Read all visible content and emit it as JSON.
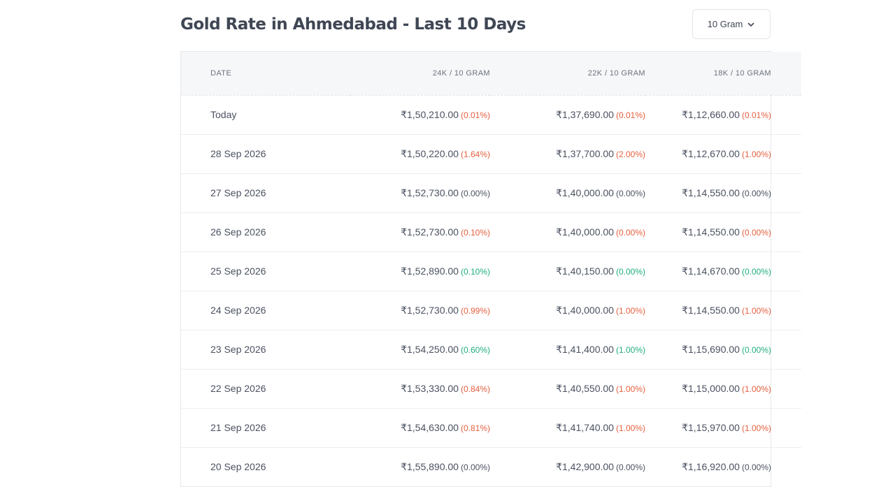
{
  "title": "Gold Rate in Ahmedabad - Last 10 Days",
  "unit_selector": {
    "value": "10 Gram",
    "icon": "chevron-down-icon"
  },
  "colors": {
    "increase": "#e5603f",
    "decrease": "#1fae7b",
    "unchanged": "#4a5160"
  },
  "table": {
    "headers": [
      "DATE",
      "24K / 10 GRAM",
      "22K / 10 GRAM",
      "18K / 10 GRAM"
    ],
    "rows": [
      {
        "date": "Today",
        "k24": {
          "price": "₹1,50,210.00",
          "change": "(0.01%)",
          "trend": "up"
        },
        "k22": {
          "price": "₹1,37,690.00",
          "change": "(0.01%)",
          "trend": "up"
        },
        "k18": {
          "price": "₹1,12,660.00",
          "change": "(0.01%)",
          "trend": "up"
        }
      },
      {
        "date": "28 Sep 2026",
        "k24": {
          "price": "₹1,50,220.00",
          "change": "(1.64%)",
          "trend": "up"
        },
        "k22": {
          "price": "₹1,37,700.00",
          "change": "(2.00%)",
          "trend": "up"
        },
        "k18": {
          "price": "₹1,12,670.00",
          "change": "(1.00%)",
          "trend": "up"
        }
      },
      {
        "date": "27 Sep 2026",
        "k24": {
          "price": "₹1,52,730.00",
          "change": "(0.00%)",
          "trend": "flat"
        },
        "k22": {
          "price": "₹1,40,000.00",
          "change": "(0.00%)",
          "trend": "flat"
        },
        "k18": {
          "price": "₹1,14,550.00",
          "change": "(0.00%)",
          "trend": "flat"
        }
      },
      {
        "date": "26 Sep 2026",
        "k24": {
          "price": "₹1,52,730.00",
          "change": "(0.10%)",
          "trend": "up"
        },
        "k22": {
          "price": "₹1,40,000.00",
          "change": "(0.00%)",
          "trend": "up"
        },
        "k18": {
          "price": "₹1,14,550.00",
          "change": "(0.00%)",
          "trend": "up"
        }
      },
      {
        "date": "25 Sep 2026",
        "k24": {
          "price": "₹1,52,890.00",
          "change": "(0.10%)",
          "trend": "down"
        },
        "k22": {
          "price": "₹1,40,150.00",
          "change": "(0.00%)",
          "trend": "down"
        },
        "k18": {
          "price": "₹1,14,670.00",
          "change": "(0.00%)",
          "trend": "down"
        }
      },
      {
        "date": "24 Sep 2026",
        "k24": {
          "price": "₹1,52,730.00",
          "change": "(0.99%)",
          "trend": "up"
        },
        "k22": {
          "price": "₹1,40,000.00",
          "change": "(1.00%)",
          "trend": "up"
        },
        "k18": {
          "price": "₹1,14,550.00",
          "change": "(1.00%)",
          "trend": "up"
        }
      },
      {
        "date": "23 Sep 2026",
        "k24": {
          "price": "₹1,54,250.00",
          "change": "(0.60%)",
          "trend": "down"
        },
        "k22": {
          "price": "₹1,41,400.00",
          "change": "(1.00%)",
          "trend": "down"
        },
        "k18": {
          "price": "₹1,15,690.00",
          "change": "(0.00%)",
          "trend": "down"
        }
      },
      {
        "date": "22 Sep 2026",
        "k24": {
          "price": "₹1,53,330.00",
          "change": "(0.84%)",
          "trend": "up"
        },
        "k22": {
          "price": "₹1,40,550.00",
          "change": "(1.00%)",
          "trend": "up"
        },
        "k18": {
          "price": "₹1,15,000.00",
          "change": "(1.00%)",
          "trend": "up"
        }
      },
      {
        "date": "21 Sep 2026",
        "k24": {
          "price": "₹1,54,630.00",
          "change": "(0.81%)",
          "trend": "up"
        },
        "k22": {
          "price": "₹1,41,740.00",
          "change": "(1.00%)",
          "trend": "up"
        },
        "k18": {
          "price": "₹1,15,970.00",
          "change": "(1.00%)",
          "trend": "up"
        }
      },
      {
        "date": "20 Sep 2026",
        "k24": {
          "price": "₹1,55,890.00",
          "change": "(0.00%)",
          "trend": "flat"
        },
        "k22": {
          "price": "₹1,42,900.00",
          "change": "(0.00%)",
          "trend": "flat"
        },
        "k18": {
          "price": "₹1,16,920.00",
          "change": "(0.00%)",
          "trend": "flat"
        }
      }
    ]
  }
}
